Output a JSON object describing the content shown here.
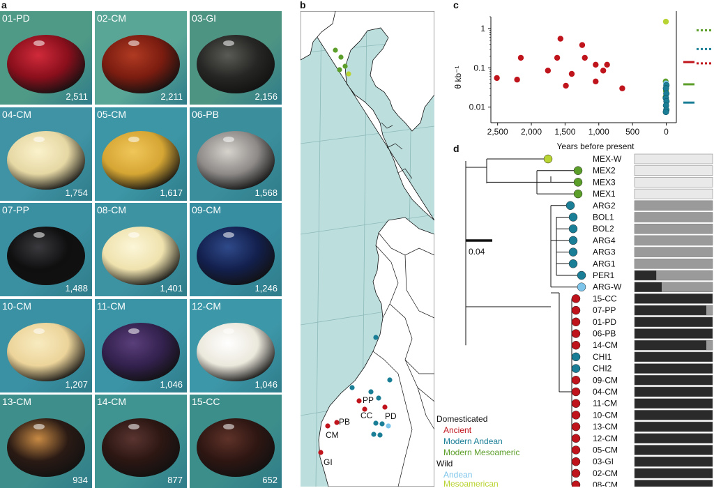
{
  "panel_letters": {
    "a": "a",
    "b": "b",
    "c": "c",
    "d": "d"
  },
  "beans": [
    {
      "id": "01-PD",
      "age": "2,511",
      "bg": "#4f9a86",
      "bean": "#8a0f1c",
      "hl": "#d02a3a"
    },
    {
      "id": "02-CM",
      "age": "2,211",
      "bg": "#5aa696",
      "bean": "#7a1c10",
      "hl": "#b03a22"
    },
    {
      "id": "03-GI",
      "age": "2,156",
      "bg": "#4e9483",
      "bean": "#262624",
      "hl": "#5a5a56"
    },
    {
      "id": "04-CM",
      "age": "1,754",
      "bg": "#3f93a4",
      "bean": "#e6d8a4",
      "hl": "#fbf2cc"
    },
    {
      "id": "05-CM",
      "age": "1,617",
      "bg": "#3c96a5",
      "bean": "#d6a634",
      "hl": "#f0c65a"
    },
    {
      "id": "06-PB",
      "age": "1,568",
      "bg": "#3b8e9c",
      "bean": "#8d8a88",
      "hl": "#d6d2cc"
    },
    {
      "id": "07-PP",
      "age": "1,488",
      "bg": "#3a8fa0",
      "bean": "#0f0f10",
      "hl": "#3a3a3e"
    },
    {
      "id": "08-CM",
      "age": "1,401",
      "bg": "#3e93a3",
      "bean": "#efe2ae",
      "hl": "#fcf6d8"
    },
    {
      "id": "09-CM",
      "age": "1,246",
      "bg": "#378ea0",
      "bean": "#13204e",
      "hl": "#2f4a8a"
    },
    {
      "id": "10-CM",
      "age": "1,207",
      "bg": "#3a91a3",
      "bean": "#ecd49a",
      "hl": "#f8ebc0"
    },
    {
      "id": "11-CM",
      "age": "1,046",
      "bg": "#3b94a6",
      "bean": "#33214e",
      "hl": "#5a3f7a"
    },
    {
      "id": "12-CM",
      "age": "1,046",
      "bg": "#3c97a8",
      "bean": "#ebe8dc",
      "hl": "#ffffff"
    },
    {
      "id": "13-CM",
      "age": "934",
      "bg": "#3e8f8c",
      "bean": "#2a1a14",
      "hl": "#c88a44"
    },
    {
      "id": "14-CM",
      "age": "877",
      "bg": "#3f9492",
      "bean": "#2b1612",
      "hl": "#5a3430"
    },
    {
      "id": "15-CC",
      "age": "652",
      "bg": "#3c8e8b",
      "bean": "#2e1612",
      "hl": "#5e3228"
    }
  ],
  "map": {
    "sites": [
      {
        "code": "PP"
      },
      {
        "code": "CC"
      },
      {
        "code": "PD"
      },
      {
        "code": "PB"
      },
      {
        "code": "CM"
      },
      {
        "code": "GI"
      }
    ],
    "legend": {
      "domesticated": "Domesticated",
      "ancient": "Ancient",
      "modern_andean": "Modern Andean",
      "modern_meso": "Modern Mesoamerican",
      "wild": "Wild",
      "andean": "Andean",
      "mesoamerican": "Mesoamerican"
    },
    "colors": {
      "ocean": "#bcdedd",
      "land": "#ffffff",
      "grid": "#8cb9b8",
      "ancient": "#c0141c",
      "modern_andean": "#1a7e96",
      "modern_meso": "#5c9e2a",
      "wild_andean": "#7cc4ea",
      "wild_meso": "#b8d432"
    }
  },
  "chart_data": {
    "type": "scatter",
    "ylabel": "θ kb⁻¹",
    "xlabel": "Years before present",
    "x_ticks": [
      "2,500",
      "2,000",
      "1,500",
      "1,000",
      "500",
      "0"
    ],
    "y_ticks": [
      "1",
      "0.1",
      "0.01"
    ],
    "y_scale": "log",
    "xlim": [
      2600,
      -150
    ],
    "ylim": [
      0.004,
      2
    ],
    "series": [
      {
        "color": "ancient",
        "points": [
          [
            2511,
            0.055
          ],
          [
            2211,
            0.05
          ],
          [
            2156,
            0.18
          ],
          [
            1754,
            0.085
          ],
          [
            1617,
            0.18
          ],
          [
            1568,
            0.55
          ],
          [
            1488,
            0.035
          ],
          [
            1401,
            0.07
          ],
          [
            1246,
            0.38
          ],
          [
            1207,
            0.18
          ],
          [
            1046,
            0.12
          ],
          [
            1046,
            0.045
          ],
          [
            934,
            0.085
          ],
          [
            877,
            0.12
          ],
          [
            652,
            0.03
          ]
        ]
      },
      {
        "color": "wild_meso",
        "points": [
          [
            5,
            1.5
          ]
        ]
      },
      {
        "color": "modern_meso",
        "points": [
          [
            8,
            0.045
          ],
          [
            5,
            0.026
          ],
          [
            10,
            0.018
          ]
        ]
      },
      {
        "color": "wild_andean",
        "points": [
          [
            3,
            0.04
          ]
        ]
      },
      {
        "color": "modern_andean",
        "points": [
          [
            -3,
            0.036
          ],
          [
            4,
            0.03
          ],
          [
            -2,
            0.022
          ],
          [
            6,
            0.017
          ],
          [
            -4,
            0.014
          ],
          [
            3,
            0.011
          ],
          [
            -2,
            0.0085
          ],
          [
            5,
            0.0075
          ]
        ]
      }
    ],
    "side_markers": [
      {
        "color": "modern_meso",
        "value": 0.038,
        "style": "solid"
      },
      {
        "color": "modern_meso",
        "value": 0.9,
        "style": "dotted"
      },
      {
        "color": "modern_andean",
        "value": 0.013,
        "style": "solid"
      },
      {
        "color": "modern_andean",
        "value": 0.3,
        "style": "dotted"
      },
      {
        "color": "ancient",
        "value": 0.14,
        "style": "solid"
      },
      {
        "color": "ancient",
        "value": 0.13,
        "style": "dotted"
      }
    ]
  },
  "tree": {
    "scale_label": "0.04",
    "leaves": [
      {
        "name": "MEX-W",
        "group": "wild_meso",
        "dark": 0.0,
        "mid": 0.0,
        "light": 1.0
      },
      {
        "name": "MEX2",
        "group": "modern_meso",
        "dark": 0.0,
        "mid": 0.0,
        "light": 1.0
      },
      {
        "name": "MEX3",
        "group": "modern_meso",
        "dark": 0.0,
        "mid": 0.0,
        "light": 1.0
      },
      {
        "name": "MEX1",
        "group": "modern_meso",
        "dark": 0.0,
        "mid": 0.0,
        "light": 1.0
      },
      {
        "name": "ARG2",
        "group": "modern_andean",
        "dark": 0.0,
        "mid": 1.0,
        "light": 0.0
      },
      {
        "name": "BOL1",
        "group": "modern_andean",
        "dark": 0.0,
        "mid": 1.0,
        "light": 0.0
      },
      {
        "name": "BOL2",
        "group": "modern_andean",
        "dark": 0.0,
        "mid": 1.0,
        "light": 0.0
      },
      {
        "name": "ARG4",
        "group": "modern_andean",
        "dark": 0.0,
        "mid": 1.0,
        "light": 0.0
      },
      {
        "name": "ARG3",
        "group": "modern_andean",
        "dark": 0.0,
        "mid": 1.0,
        "light": 0.0
      },
      {
        "name": "ARG1",
        "group": "modern_andean",
        "dark": 0.0,
        "mid": 1.0,
        "light": 0.0
      },
      {
        "name": "PER1",
        "group": "modern_andean",
        "dark": 0.28,
        "mid": 0.72,
        "light": 0.0
      },
      {
        "name": "ARG-W",
        "group": "wild_andean",
        "dark": 0.35,
        "mid": 0.65,
        "light": 0.0
      },
      {
        "name": "15-CC",
        "group": "ancient",
        "dark": 1.0,
        "mid": 0.0,
        "light": 0.0
      },
      {
        "name": "07-PP",
        "group": "ancient",
        "dark": 0.92,
        "mid": 0.08,
        "light": 0.0
      },
      {
        "name": "01-PD",
        "group": "ancient",
        "dark": 1.0,
        "mid": 0.0,
        "light": 0.0
      },
      {
        "name": "06-PB",
        "group": "ancient",
        "dark": 1.0,
        "mid": 0.0,
        "light": 0.0
      },
      {
        "name": "14-CM",
        "group": "ancient",
        "dark": 0.92,
        "mid": 0.08,
        "light": 0.0
      },
      {
        "name": "CHI1",
        "group": "modern_andean",
        "dark": 1.0,
        "mid": 0.0,
        "light": 0.0
      },
      {
        "name": "CHI2",
        "group": "modern_andean",
        "dark": 1.0,
        "mid": 0.0,
        "light": 0.0
      },
      {
        "name": "09-CM",
        "group": "ancient",
        "dark": 1.0,
        "mid": 0.0,
        "light": 0.0
      },
      {
        "name": "04-CM",
        "group": "ancient",
        "dark": 1.0,
        "mid": 0.0,
        "light": 0.0
      },
      {
        "name": "11-CM",
        "group": "ancient",
        "dark": 1.0,
        "mid": 0.0,
        "light": 0.0
      },
      {
        "name": "10-CM",
        "group": "ancient",
        "dark": 1.0,
        "mid": 0.0,
        "light": 0.0
      },
      {
        "name": "13-CM",
        "group": "ancient",
        "dark": 1.0,
        "mid": 0.0,
        "light": 0.0
      },
      {
        "name": "12-CM",
        "group": "ancient",
        "dark": 1.0,
        "mid": 0.0,
        "light": 0.0
      },
      {
        "name": "05-CM",
        "group": "ancient",
        "dark": 1.0,
        "mid": 0.0,
        "light": 0.0
      },
      {
        "name": "03-GI",
        "group": "ancient",
        "dark": 1.0,
        "mid": 0.0,
        "light": 0.0
      },
      {
        "name": "02-CM",
        "group": "ancient",
        "dark": 1.0,
        "mid": 0.0,
        "light": 0.0
      },
      {
        "name": "08-CM",
        "group": "ancient",
        "dark": 1.0,
        "mid": 0.0,
        "light": 0.0
      }
    ],
    "bar_colors": {
      "dark": "#2a2a2a",
      "mid": "#9a9a9a",
      "light": "#e9e9e9"
    }
  }
}
